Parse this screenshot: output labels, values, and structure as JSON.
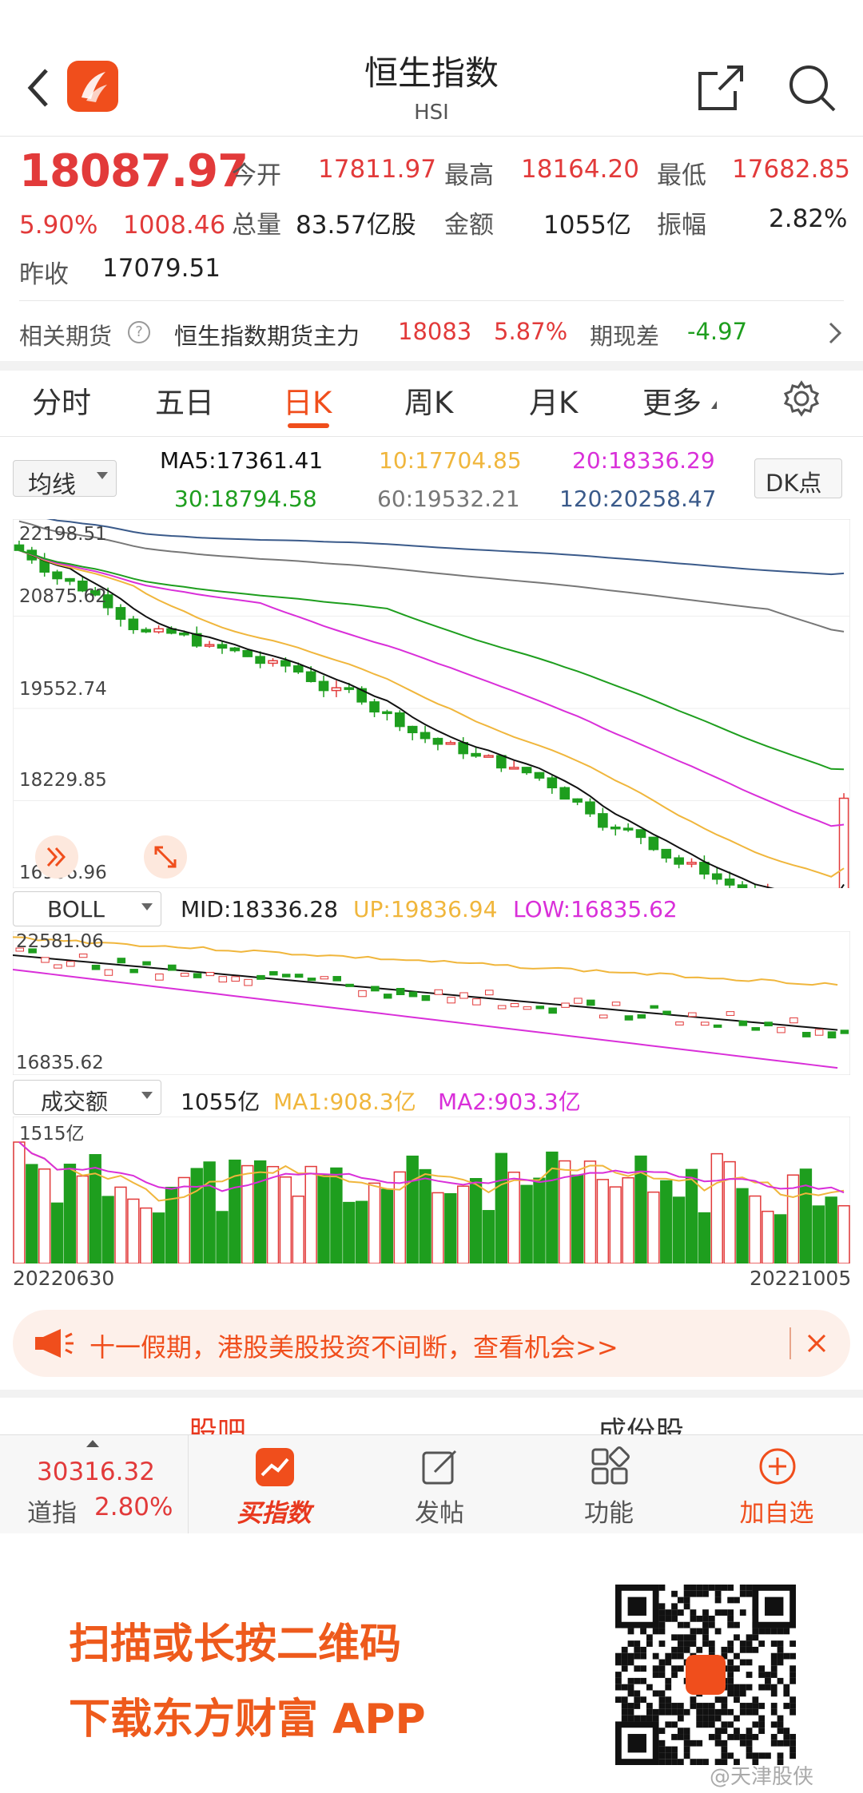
{
  "header": {
    "title": "恒生指数",
    "subtitle": "HSI"
  },
  "quote": {
    "price": "18087.97",
    "change_pct": "5.90%",
    "change": "1008.46",
    "prev_close_label": "昨收",
    "prev_close": "17079.51",
    "open_label": "今开",
    "open": "17811.97",
    "high_label": "最高",
    "high": "18164.20",
    "low_label": "最低",
    "low": "17682.85",
    "volume_label": "总量",
    "volume": "83.57亿股",
    "amount_label": "金额",
    "amount": "1055亿",
    "amplitude_label": "振幅",
    "amplitude": "2.82%"
  },
  "futures": {
    "label": "相关期货",
    "help_icon": "?",
    "name": "恒生指数期货主力",
    "price": "18083",
    "pct": "5.87%",
    "basis_label": "期现差",
    "basis": "-4.97"
  },
  "tabs": [
    "分时",
    "五日",
    "日K",
    "周K",
    "月K",
    "更多"
  ],
  "active_tab": 2,
  "ma": {
    "selector": "均线",
    "ma5": "MA5:17361.41",
    "ma10": "10:17704.85",
    "ma20": "20:18336.29",
    "ma30": "30:18794.58",
    "ma60": "60:19532.21",
    "ma120": "120:20258.47",
    "dk_button": "DK点"
  },
  "kline_axis": [
    "22198.51",
    "20875.62",
    "19552.74",
    "18229.85",
    "16906.96"
  ],
  "boll": {
    "selector": "BOLL",
    "mid": "MID:18336.28",
    "up": "UP:19836.94",
    "low": "LOW:16835.62",
    "axis_top": "22581.06",
    "axis_bottom": "16835.62"
  },
  "volume": {
    "selector": "成交额",
    "value": "1055亿",
    "ma1": "MA1:908.3亿",
    "ma2": "MA2:903.3亿",
    "axis_top": "1515亿",
    "date_start": "20220630",
    "date_end": "20221005"
  },
  "banner": {
    "text": "十一假期，港股美股投资不间断，查看机会>>"
  },
  "sections": [
    "股吧",
    "成份股"
  ],
  "bottom": {
    "ticker_price": "30316.32",
    "ticker_name": "道指",
    "ticker_pct": "2.80%",
    "buy_label": "买指数",
    "post_label": "发帖",
    "func_label": "功能",
    "add_label": "加自选"
  },
  "promo": {
    "line1": "扫描或长按二维码",
    "line2": "下载东方财富 APP",
    "watermark": "@天津股侠"
  },
  "colors": {
    "up": "#e23a3a",
    "down": "#1e9e1e",
    "accent": "#f04e1c",
    "ma5": "#111111",
    "ma10": "#f0b63c",
    "ma20": "#d92fd9",
    "ma30": "#1e9e1e",
    "ma60": "#777777",
    "ma120": "#3a5a8a"
  }
}
